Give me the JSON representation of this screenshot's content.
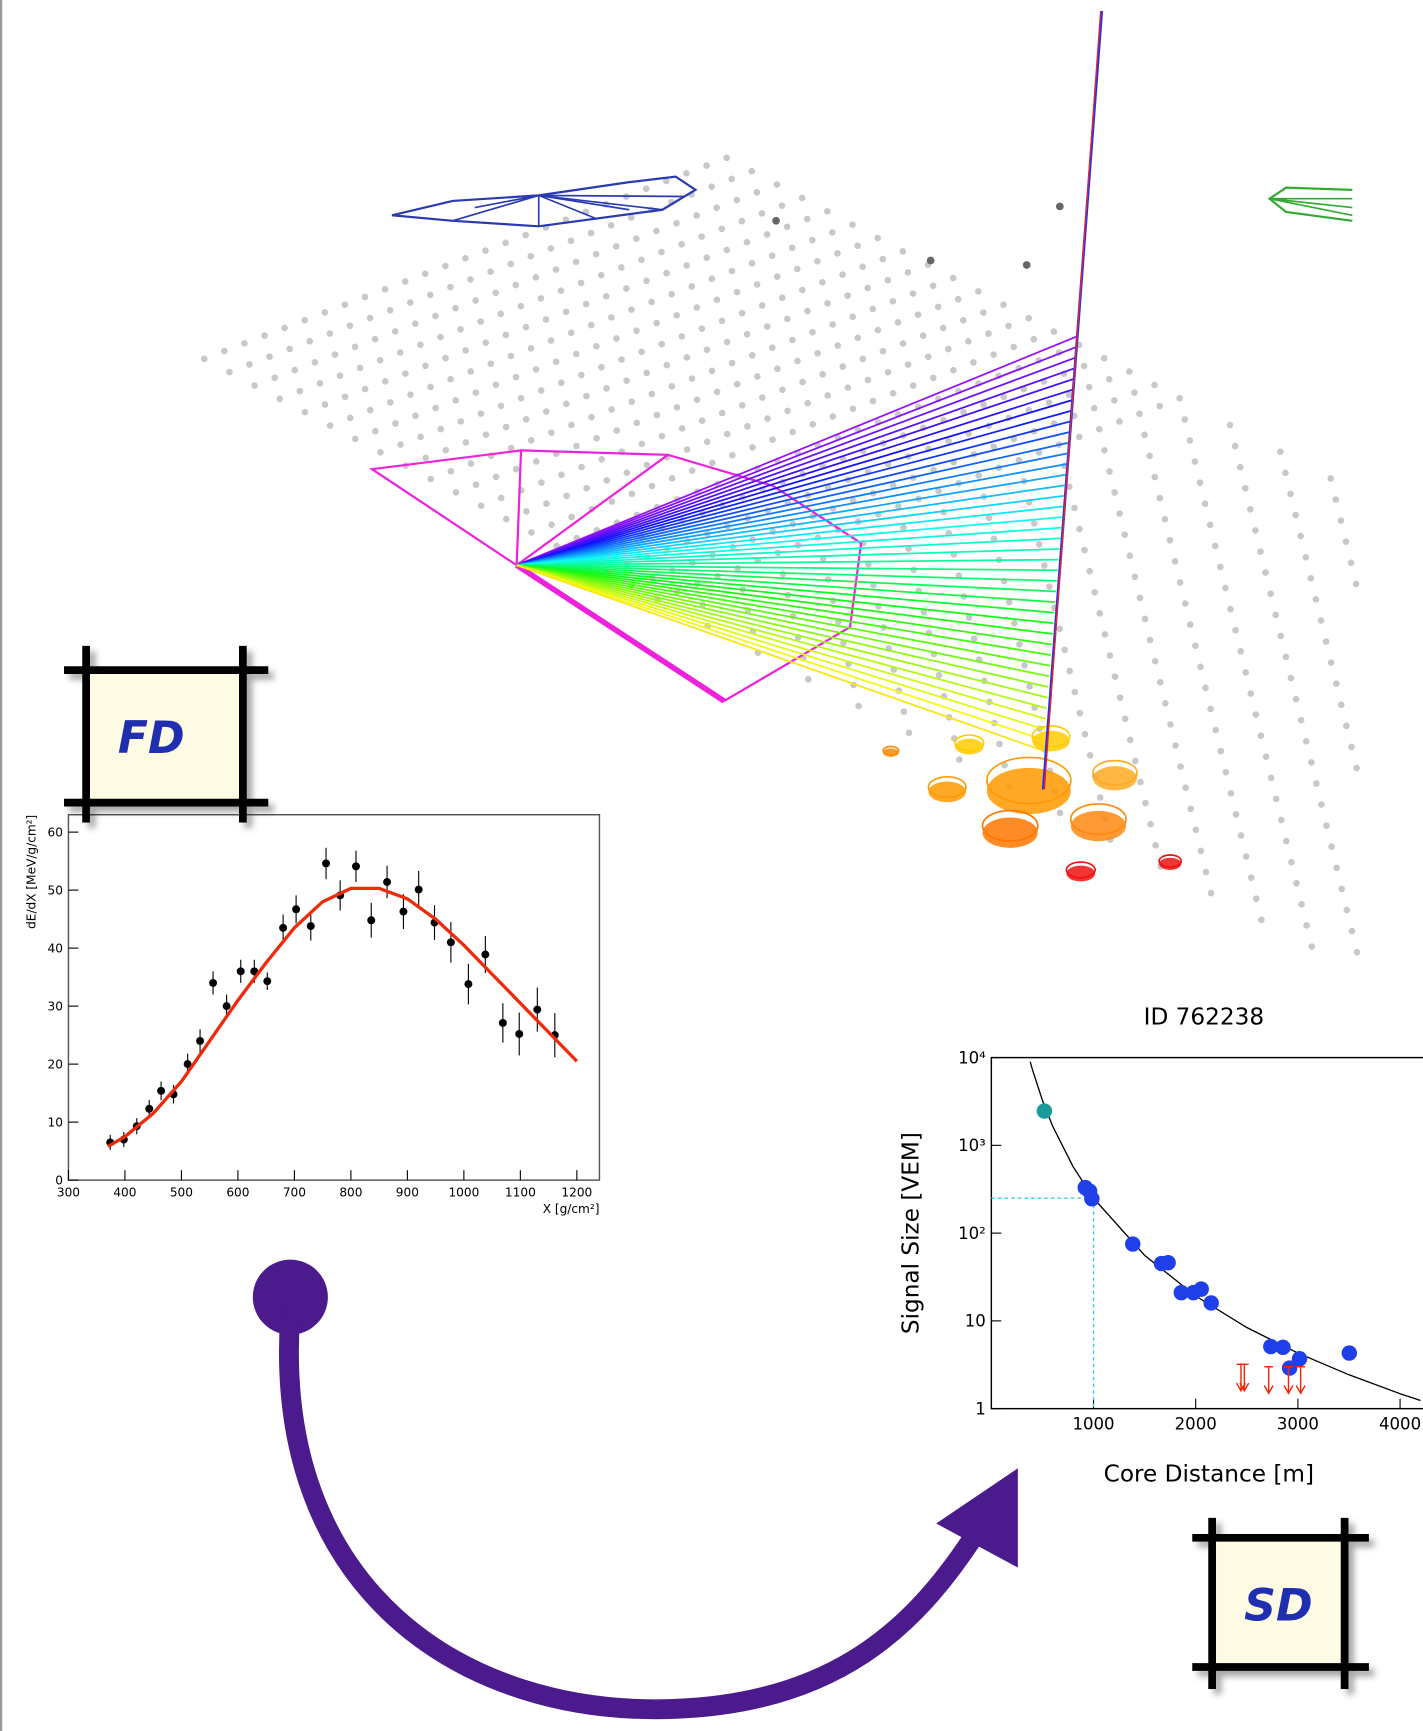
{
  "labels": {
    "fd": "FD",
    "sd": "SD"
  },
  "chart_data": [
    {
      "type": "scatter",
      "ylabel": "dE/dX [MeV/g/cm²]",
      "xlabel": "X [g/cm²]",
      "xlim": [
        300,
        1240
      ],
      "ylim": [
        0,
        63
      ],
      "xticks": [
        300,
        400,
        500,
        600,
        700,
        800,
        900,
        1000,
        1100,
        1200
      ],
      "yticks": [
        0,
        10,
        20,
        30,
        40,
        50,
        60
      ],
      "series": [
        {
          "type": "errorbar",
          "color": "#000000",
          "x": [
            374,
            398,
            421,
            443,
            464,
            486,
            511,
            533,
            556,
            580,
            605,
            629,
            652,
            680,
            703,
            729,
            756,
            781,
            809,
            836,
            864,
            893,
            920,
            948,
            977,
            1008,
            1038,
            1069,
            1098,
            1130,
            1161
          ],
          "values": [
            6.5,
            7,
            9.3,
            12.3,
            15.4,
            14.8,
            20,
            24,
            34,
            30,
            36,
            36,
            34.3,
            43.5,
            46.7,
            43.8,
            54.6,
            49.1,
            54.1,
            44.8,
            51.4,
            46.3,
            50.1,
            44.4,
            41,
            33.8,
            38.9,
            27.1,
            25.2,
            29.4,
            25
          ],
          "errors": [
            1.3,
            1.3,
            1.4,
            1.5,
            1.6,
            1.6,
            1.8,
            2,
            2,
            2,
            2,
            2,
            1.5,
            2.3,
            2.4,
            2.5,
            2.7,
            2.6,
            2.7,
            3,
            2.8,
            3,
            3.2,
            3,
            3.5,
            3.5,
            3.2,
            3.4,
            3.7,
            3.8,
            3.8
          ]
        },
        {
          "type": "line",
          "color": "#ee2a0a",
          "x": [
            370,
            400,
            450,
            500,
            550,
            600,
            650,
            700,
            750,
            800,
            850,
            900,
            950,
            1000,
            1050,
            1100,
            1150,
            1200
          ],
          "values": [
            5.8,
            7.5,
            11.5,
            17,
            24,
            31,
            37.5,
            43.5,
            48,
            50.3,
            50.3,
            48.5,
            45,
            40.5,
            35.5,
            30.5,
            25.5,
            20.5
          ]
        }
      ]
    },
    {
      "type": "scatter",
      "title": "ID 762238",
      "ylabel": "Signal Size [VEM]",
      "xlabel": "Core Distance [m]",
      "ylog": true,
      "xlim": [
        0,
        4300
      ],
      "ylim": [
        1,
        10000
      ],
      "xticks": [
        1000,
        2000,
        3000,
        4000
      ],
      "yticks": [
        1,
        10,
        {
          "value": 100,
          "label": "10²"
        },
        {
          "value": 1000,
          "label": "10³"
        },
        {
          "value": 10000,
          "label": "10⁴"
        }
      ],
      "reference": {
        "x": 1000,
        "value": 250,
        "color": "#33ccee"
      },
      "series": [
        {
          "type": "line",
          "color": "#000000",
          "x": [
            380,
            400,
            500,
            600,
            800,
            1000,
            1500,
            2000,
            2500,
            3000,
            3500,
            4000,
            4200
          ],
          "values": [
            8970,
            7420,
            3250,
            1655,
            571,
            250,
            55.8,
            19.2,
            8.4,
            4.3,
            2.43,
            1.48,
            1.24
          ]
        },
        {
          "type": "points",
          "color": "#1a9a9a",
          "x": [
            519
          ],
          "values": [
            2460
          ]
        },
        {
          "type": "points",
          "color": "#1f3fe8",
          "x": [
            919,
            962,
            984,
            1384,
            1665,
            1730,
            1859,
            1978,
            2054,
            2151,
            2735,
            2854,
            2919,
            3016,
            3503
          ],
          "values": [
            330,
            300,
            246,
            75,
            45,
            46,
            21,
            21,
            23,
            16,
            5.1,
            5,
            2.9,
            3.7,
            4.3
          ]
        },
        {
          "type": "upper_limit",
          "color": "#ee2a0a",
          "x": [
            2443,
            2476,
            2714,
            2908,
            3027
          ],
          "values": [
            3.2,
            3.2,
            3.0,
            3.0,
            3.0
          ]
        }
      ]
    }
  ]
}
